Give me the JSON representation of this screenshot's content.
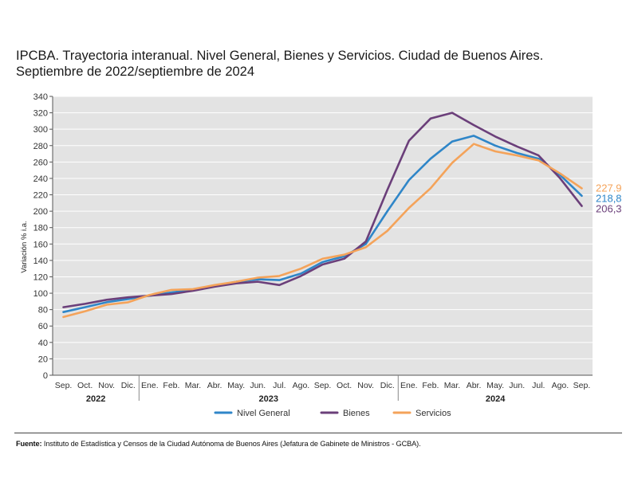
{
  "title_line1": "IPCBA. Trayectoria interanual. Nivel General, Bienes y Servicios. Ciudad de Buenos Aires.",
  "title_line2": "Septiembre de 2022/septiembre de 2024",
  "source_label": "Fuente:",
  "source_text": " Instituto de Estadística y Censos de la Ciudad Autónoma de Buenos Aires (Jefatura de Gabinete de Ministros - GCBA).",
  "chart_data": {
    "type": "line",
    "title": "IPCBA. Trayectoria interanual. Nivel General, Bienes y Servicios. Ciudad de Buenos Aires.",
    "subtitle": "Septiembre de 2022/septiembre de 2024",
    "xlabel": "",
    "ylabel": "Variación % i.a.",
    "ylim": [
      0,
      340
    ],
    "ytick_step": 20,
    "grid": true,
    "legend_position": "bottom",
    "categories": [
      "Sep.",
      "Oct.",
      "Nov.",
      "Dic.",
      "Ene.",
      "Feb.",
      "Mar.",
      "Abr.",
      "May.",
      "Jun.",
      "Jul.",
      "Ago.",
      "Sep.",
      "Oct.",
      "Nov.",
      "Dic.",
      "Ene.",
      "Feb.",
      "Mar.",
      "Abr.",
      "May.",
      "Jun.",
      "Jul.",
      "Ago.",
      "Sep."
    ],
    "year_groups": [
      {
        "label": "2022",
        "start": 0,
        "end": 3
      },
      {
        "label": "2023",
        "start": 4,
        "end": 15
      },
      {
        "label": "2024",
        "start": 16,
        "end": 24
      }
    ],
    "series": [
      {
        "name": "Nivel General",
        "color": "#2f86c8",
        "end_label": "218,8",
        "values": [
          77,
          83,
          89,
          93,
          97,
          101,
          104,
          109,
          114,
          117,
          116,
          124,
          138,
          145,
          160,
          200,
          238,
          264,
          285,
          292,
          280,
          271,
          264,
          244,
          218.8
        ]
      },
      {
        "name": "Bienes",
        "color": "#6b3f7a",
        "end_label": "206,3",
        "values": [
          83,
          87,
          92,
          95,
          97,
          99,
          103,
          108,
          112,
          114,
          110,
          121,
          135,
          142,
          163,
          226,
          286,
          313,
          320,
          305,
          291,
          279,
          268,
          240,
          206.3
        ]
      },
      {
        "name": "Servicios",
        "color": "#f4a35a",
        "end_label": "227.9",
        "values": [
          71,
          78,
          86,
          89,
          98,
          104,
          105,
          110,
          114,
          119,
          121,
          130,
          142,
          147,
          156,
          176,
          204,
          228,
          259,
          282,
          273,
          268,
          262,
          246,
          227.9
        ]
      }
    ]
  }
}
